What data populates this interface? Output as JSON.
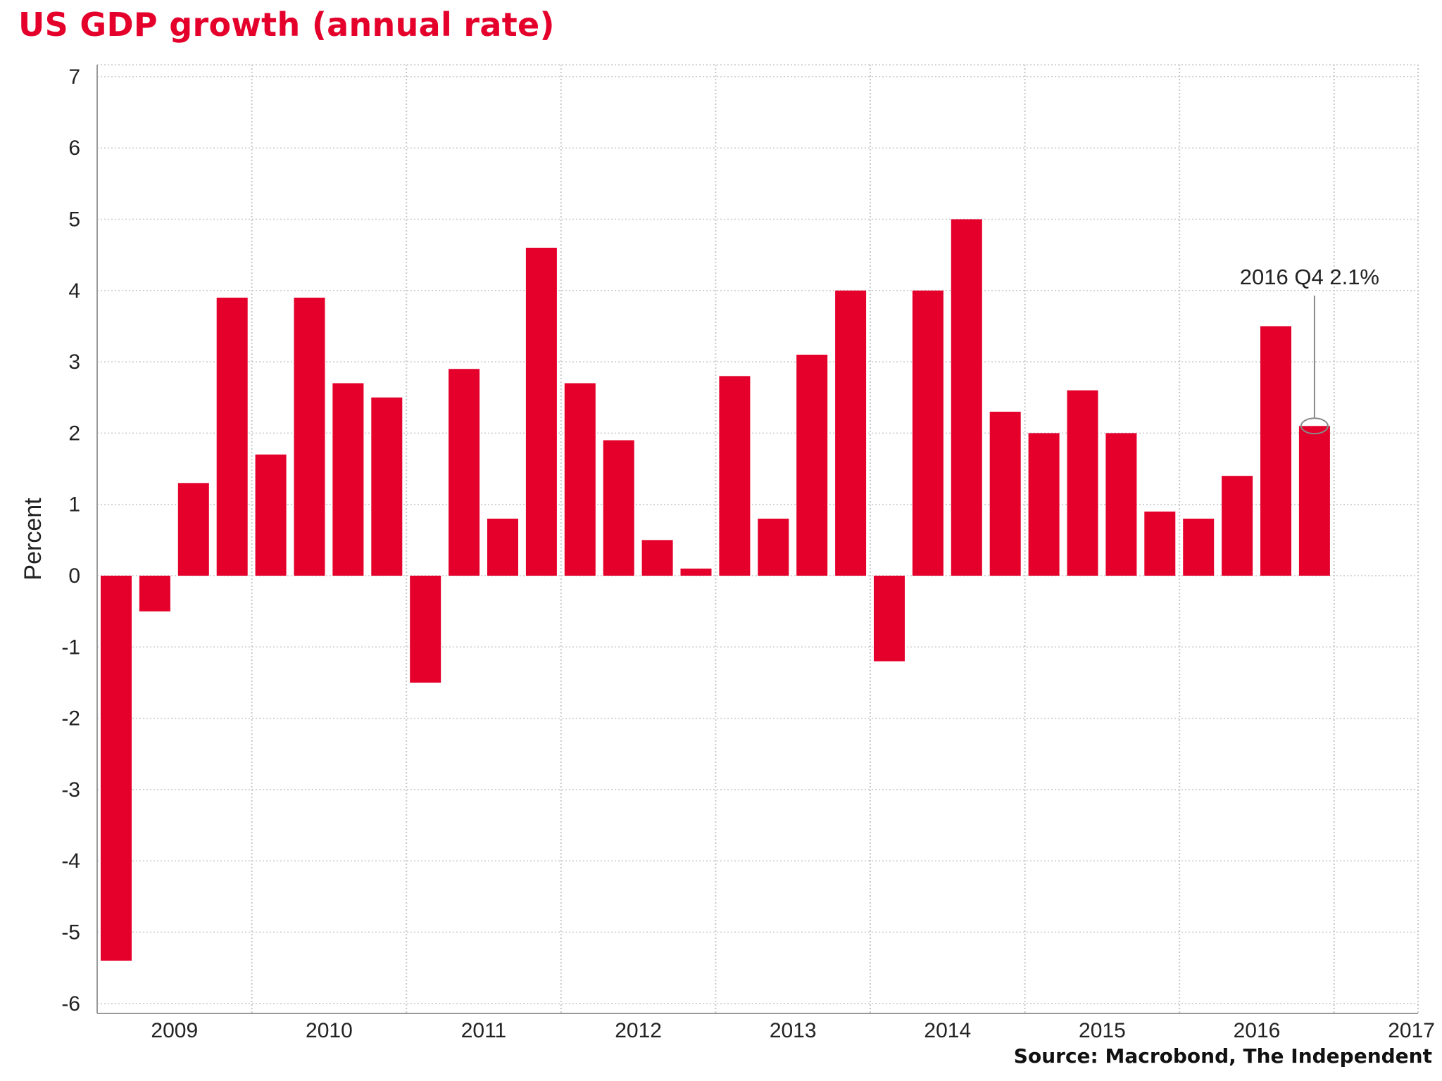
{
  "chart_data": {
    "type": "bar",
    "title": "US GDP growth (annual rate)",
    "xlabel": "",
    "ylabel": "Percent",
    "ylim": [
      -6.15,
      7.15
    ],
    "yticks": [
      -6,
      -5,
      -4,
      -3,
      -2,
      -1,
      0,
      1,
      2,
      3,
      4,
      5,
      6,
      7
    ],
    "xticks": [
      "2009",
      "2010",
      "2011",
      "2012",
      "2013",
      "2014",
      "2015",
      "2016",
      "2017"
    ],
    "grid": true,
    "categories": [
      "2009 Q1",
      "2009 Q2",
      "2009 Q3",
      "2009 Q4",
      "2010 Q1",
      "2010 Q2",
      "2010 Q3",
      "2010 Q4",
      "2011 Q1",
      "2011 Q2",
      "2011 Q3",
      "2011 Q4",
      "2012 Q1",
      "2012 Q2",
      "2012 Q3",
      "2012 Q4",
      "2013 Q1",
      "2013 Q2",
      "2013 Q3",
      "2013 Q4",
      "2014 Q1",
      "2014 Q2",
      "2014 Q3",
      "2014 Q4",
      "2015 Q1",
      "2015 Q2",
      "2015 Q3",
      "2015 Q4",
      "2016 Q1",
      "2016 Q2",
      "2016 Q3",
      "2016 Q4"
    ],
    "values": [
      -5.4,
      -0.5,
      1.3,
      3.9,
      1.7,
      3.9,
      2.7,
      2.5,
      -1.5,
      2.9,
      0.8,
      4.6,
      2.7,
      1.9,
      0.5,
      0.1,
      2.8,
      0.8,
      3.1,
      4.0,
      -1.2,
      4.0,
      5.0,
      2.3,
      2.0,
      2.6,
      2.0,
      0.9,
      0.8,
      1.4,
      3.5,
      2.1
    ],
    "annotation": {
      "text": "2016 Q4 2.1%",
      "category": "2016 Q4",
      "value": 2.1
    },
    "source": "Source: Macrobond, The Independent"
  },
  "colors": {
    "bar": "#e4002b",
    "title": "#e4002b",
    "grid": "#c8c8c8",
    "axis": "#9a9a9a",
    "text": "#222222"
  }
}
